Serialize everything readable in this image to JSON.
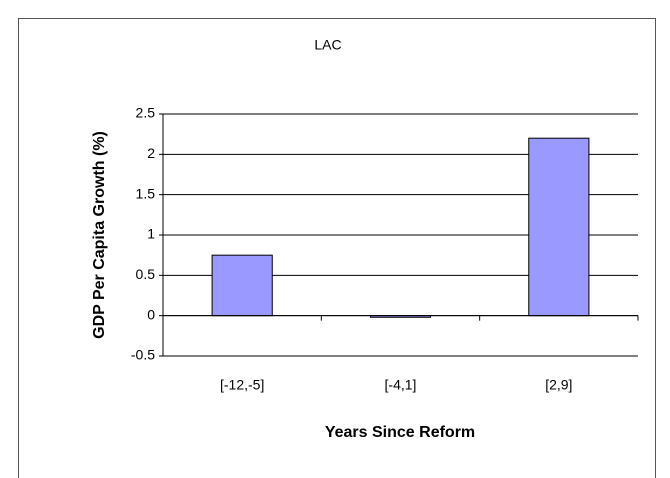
{
  "chart_data": {
    "type": "bar",
    "title": "LAC",
    "x_label": "Years Since Reform",
    "y_label": "GDP Per Capita Growth (%)",
    "categories": [
      "[-12,-5]",
      "[-4,1]",
      "[2,9]"
    ],
    "values": [
      0.75,
      -0.02,
      2.2
    ],
    "color": "#9999ff",
    "ylim": [
      -0.5,
      2.5
    ],
    "yticks": [
      -0.5,
      0,
      0.5,
      1,
      1.5,
      2,
      2.5
    ],
    "grid": true
  }
}
